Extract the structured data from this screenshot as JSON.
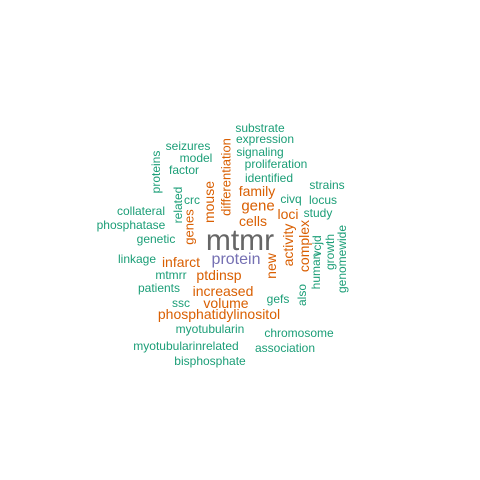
{
  "colors": {
    "green": "#1b9e77",
    "orange": "#d95f02",
    "purple": "#7570b3",
    "gray": "#666666"
  },
  "cloud": {
    "words": [
      {
        "text": "mtmr",
        "color": "gray"
      },
      {
        "text": "protein",
        "color": "purple"
      },
      {
        "text": "gene",
        "color": "orange"
      },
      {
        "text": "cells",
        "color": "orange"
      },
      {
        "text": "family",
        "color": "orange"
      },
      {
        "text": "loci",
        "color": "orange"
      },
      {
        "text": "mouse",
        "color": "orange"
      },
      {
        "text": "differentiation",
        "color": "orange"
      },
      {
        "text": "genes",
        "color": "orange"
      },
      {
        "text": "infarct",
        "color": "orange"
      },
      {
        "text": "ptdinsp",
        "color": "orange"
      },
      {
        "text": "increased",
        "color": "orange"
      },
      {
        "text": "volume",
        "color": "orange"
      },
      {
        "text": "phosphatidylinositol",
        "color": "orange"
      },
      {
        "text": "new",
        "color": "orange"
      },
      {
        "text": "activity",
        "color": "orange"
      },
      {
        "text": "complex",
        "color": "orange"
      },
      {
        "text": "substrate",
        "color": "green"
      },
      {
        "text": "expression",
        "color": "green"
      },
      {
        "text": "seizures",
        "color": "green"
      },
      {
        "text": "signaling",
        "color": "green"
      },
      {
        "text": "model",
        "color": "green"
      },
      {
        "text": "proliferation",
        "color": "green"
      },
      {
        "text": "factor",
        "color": "green"
      },
      {
        "text": "identified",
        "color": "green"
      },
      {
        "text": "proteins",
        "color": "green"
      },
      {
        "text": "strains",
        "color": "green"
      },
      {
        "text": "civq",
        "color": "green"
      },
      {
        "text": "locus",
        "color": "green"
      },
      {
        "text": "crc",
        "color": "green"
      },
      {
        "text": "study",
        "color": "green"
      },
      {
        "text": "related",
        "color": "green"
      },
      {
        "text": "collateral",
        "color": "green"
      },
      {
        "text": "phosphatase",
        "color": "green"
      },
      {
        "text": "genetic",
        "color": "green"
      },
      {
        "text": "vcjd",
        "color": "green"
      },
      {
        "text": "genomewide",
        "color": "green"
      },
      {
        "text": "growth",
        "color": "green"
      },
      {
        "text": "human",
        "color": "green"
      },
      {
        "text": "linkage",
        "color": "green"
      },
      {
        "text": "mtmrr",
        "color": "green"
      },
      {
        "text": "patients",
        "color": "green"
      },
      {
        "text": "also",
        "color": "green"
      },
      {
        "text": "gefs",
        "color": "green"
      },
      {
        "text": "ssc",
        "color": "green"
      },
      {
        "text": "myotubularin",
        "color": "green"
      },
      {
        "text": "chromosome",
        "color": "green"
      },
      {
        "text": "myotubularinrelated",
        "color": "green"
      },
      {
        "text": "association",
        "color": "green"
      },
      {
        "text": "bisphosphate",
        "color": "green"
      }
    ]
  }
}
